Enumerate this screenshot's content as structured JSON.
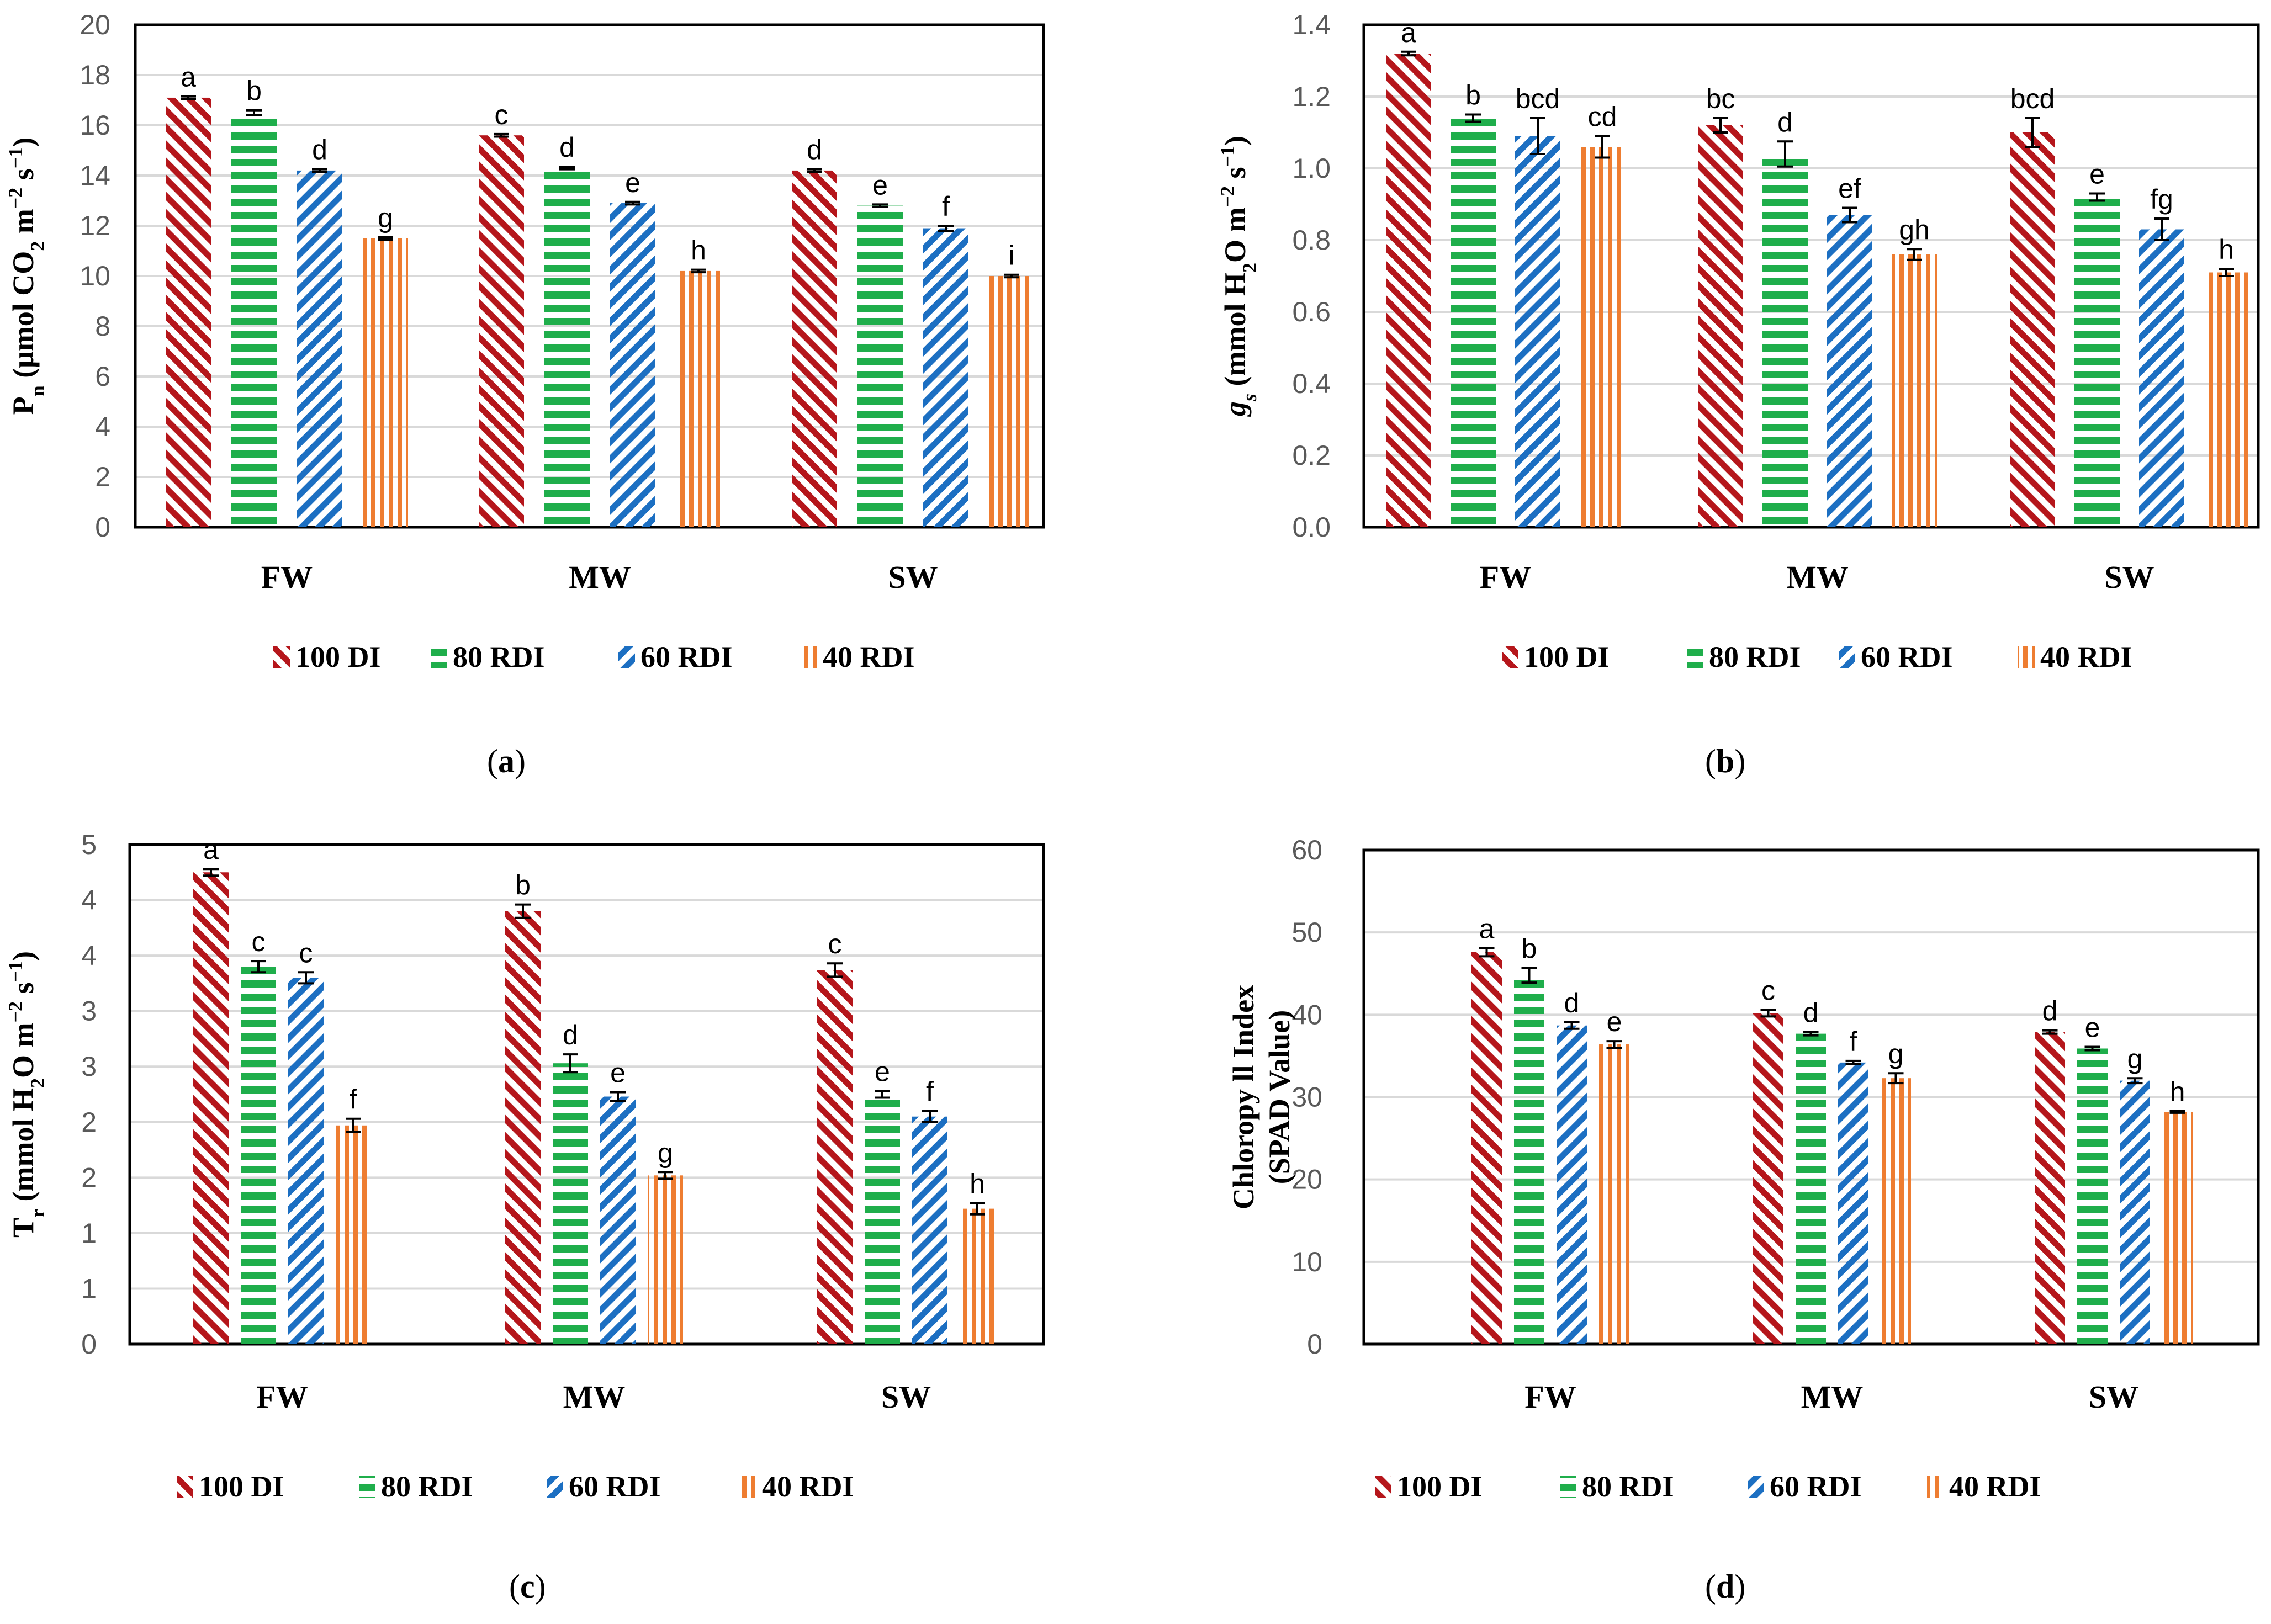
{
  "legend": [
    "100 DI",
    "80 RDI",
    "60  RDI",
    "40  RDI"
  ],
  "colors": [
    "#b5161b",
    "#1fae4b",
    "#1c6fc2",
    "#ee7d31"
  ],
  "panel_labels": [
    "a",
    "b",
    "c",
    "d"
  ],
  "chart_data": [
    {
      "type": "bar",
      "panel": "a",
      "categories": [
        "FW",
        "MW",
        "SW"
      ],
      "ylim": [
        0,
        20
      ],
      "yticks": [
        "0",
        "2",
        "4",
        "6",
        "8",
        "10",
        "12",
        "14",
        "16",
        "18",
        "20"
      ],
      "ylabel": [
        "P",
        "n",
        " (μmol CO",
        "2",
        " m",
        "−2",
        " s",
        "−1",
        ")"
      ],
      "series": [
        {
          "name": "100 DI",
          "values": [
            17.1,
            15.6,
            14.2
          ],
          "errors": [
            0.05,
            0.05,
            0.05
          ],
          "letters": [
            "a",
            "c",
            "d"
          ]
        },
        {
          "name": "80 RDI",
          "values": [
            16.5,
            14.3,
            12.8
          ],
          "errors": [
            0.1,
            0.05,
            0.05
          ],
          "letters": [
            "b",
            "d",
            "e"
          ]
        },
        {
          "name": "60  RDI",
          "values": [
            14.2,
            12.9,
            11.9
          ],
          "errors": [
            0.05,
            0.05,
            0.1
          ],
          "letters": [
            "d",
            "e",
            "f"
          ]
        },
        {
          "name": "40  RDI",
          "values": [
            11.5,
            10.2,
            10.0
          ],
          "errors": [
            0.05,
            0.05,
            0.05
          ],
          "letters": [
            "g",
            "h",
            "i"
          ]
        }
      ]
    },
    {
      "type": "bar",
      "panel": "b",
      "categories": [
        "FW",
        "MW",
        "SW"
      ],
      "ylim": [
        0,
        1.4
      ],
      "yticks": [
        "0.0",
        "0.2",
        "0.4",
        "0.6",
        "0.8",
        "1.0",
        "1.2",
        "1.4"
      ],
      "ylabel": [
        "g",
        "s",
        " (mmol H",
        "2",
        "O m",
        "−2",
        " s",
        "−1",
        ")"
      ],
      "series": [
        {
          "name": "100 DI",
          "values": [
            1.32,
            1.12,
            1.1
          ],
          "errors": [
            0.005,
            0.02,
            0.04
          ],
          "letters": [
            "a",
            "bc",
            "bcd"
          ]
        },
        {
          "name": "80 RDI",
          "values": [
            1.14,
            1.04,
            0.92
          ],
          "errors": [
            0.01,
            0.035,
            0.01
          ],
          "letters": [
            "b",
            "d",
            "e"
          ]
        },
        {
          "name": "60  RDI",
          "values": [
            1.09,
            0.87,
            0.83
          ],
          "errors": [
            0.05,
            0.02,
            0.03
          ],
          "letters": [
            "bcd",
            "ef",
            "fg"
          ]
        },
        {
          "name": "40  RDI",
          "values": [
            1.06,
            0.76,
            0.71
          ],
          "errors": [
            0.03,
            0.015,
            0.01
          ],
          "letters": [
            "cd",
            "gh",
            "h"
          ]
        }
      ]
    },
    {
      "type": "bar",
      "panel": "c",
      "categories": [
        "FW",
        "MW",
        "SW"
      ],
      "ylim": [
        0,
        4.5
      ],
      "yticks": [
        "0",
        "1",
        "1",
        "2",
        "2",
        "3",
        "3",
        "4",
        "4",
        "5"
      ],
      "ylabel": [
        "T",
        "r",
        " (mmol H",
        "2",
        "O m",
        "−2",
        " s",
        "−1",
        ")"
      ],
      "series": [
        {
          "name": "100 DI",
          "values": [
            4.25,
            3.9,
            3.37
          ],
          "errors": [
            0.03,
            0.06,
            0.06
          ],
          "letters": [
            "a",
            "b",
            "c"
          ]
        },
        {
          "name": "80 RDI",
          "values": [
            3.4,
            2.53,
            2.25
          ],
          "errors": [
            0.05,
            0.08,
            0.03
          ],
          "letters": [
            "c",
            "d",
            "e"
          ]
        },
        {
          "name": "60  RDI",
          "values": [
            3.3,
            2.23,
            2.05
          ],
          "errors": [
            0.05,
            0.04,
            0.05
          ],
          "letters": [
            "c",
            "e",
            "f"
          ]
        },
        {
          "name": "40  RDI",
          "values": [
            1.97,
            1.52,
            1.22
          ],
          "errors": [
            0.06,
            0.03,
            0.05
          ],
          "letters": [
            "f",
            "g",
            "h"
          ]
        }
      ]
    },
    {
      "type": "bar",
      "panel": "d",
      "categories": [
        "FW",
        "MW",
        "SW"
      ],
      "ylim": [
        0,
        60
      ],
      "yticks": [
        "0",
        "10",
        "20",
        "30",
        "40",
        "50",
        "60"
      ],
      "ylabel_lines": [
        "Chloropy ll Index",
        "(SPAD Value)"
      ],
      "series": [
        {
          "name": "100 DI",
          "values": [
            47.6,
            40.2,
            37.9
          ],
          "errors": [
            0.5,
            0.4,
            0.2
          ],
          "letters": [
            "a",
            "c",
            "d"
          ]
        },
        {
          "name": "80 RDI",
          "values": [
            44.8,
            37.7,
            35.9
          ],
          "errors": [
            0.9,
            0.2,
            0.2
          ],
          "letters": [
            "b",
            "d",
            "e"
          ]
        },
        {
          "name": "60  RDI",
          "values": [
            38.7,
            34.2,
            32.0
          ],
          "errors": [
            0.4,
            0.2,
            0.3
          ],
          "letters": [
            "d",
            "f",
            "g"
          ]
        },
        {
          "name": "40  RDI",
          "values": [
            36.4,
            32.3,
            28.2
          ],
          "errors": [
            0.4,
            0.6,
            0.1
          ],
          "letters": [
            "e",
            "g",
            "h"
          ]
        }
      ]
    }
  ]
}
